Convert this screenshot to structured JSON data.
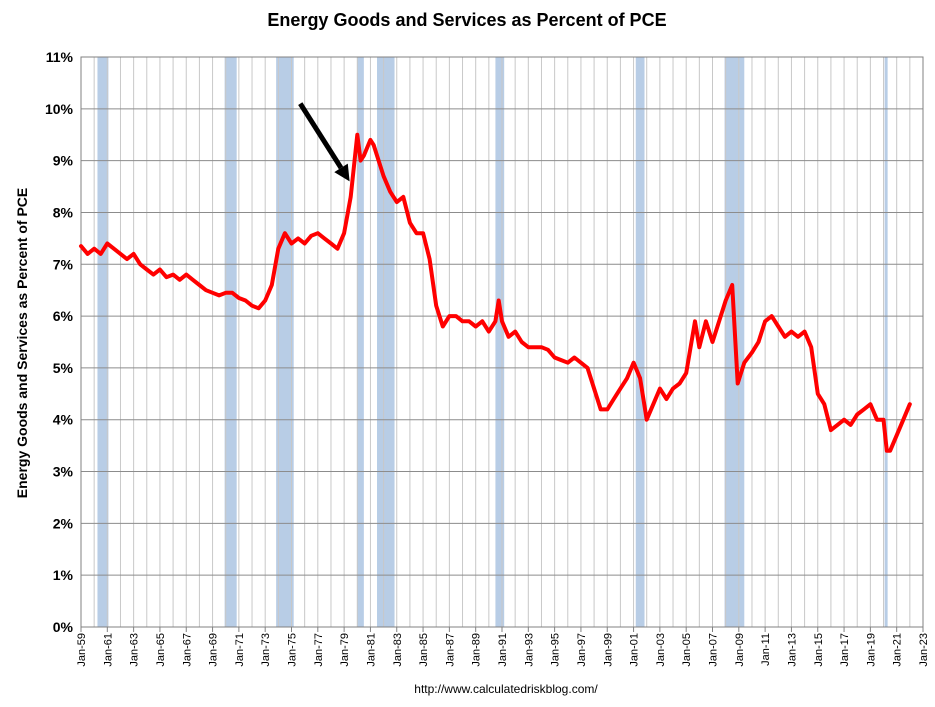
{
  "chart_data": {
    "type": "line",
    "title": "Energy Goods and Services as Percent of PCE",
    "ylabel": "Energy Goods and Services as Percent of PCE",
    "source": "http://www.calculatedriskblog.com/",
    "ylim": [
      0,
      11
    ],
    "y_unit": "%",
    "yticks": [
      "0%",
      "1%",
      "2%",
      "3%",
      "4%",
      "5%",
      "6%",
      "7%",
      "8%",
      "9%",
      "10%",
      "11%"
    ],
    "xlim": [
      "1959-01",
      "2023-01"
    ],
    "xticks": [
      "Jan-59",
      "Jan-61",
      "Jan-63",
      "Jan-65",
      "Jan-67",
      "Jan-69",
      "Jan-71",
      "Jan-73",
      "Jan-75",
      "Jan-77",
      "Jan-79",
      "Jan-81",
      "Jan-83",
      "Jan-85",
      "Jan-87",
      "Jan-89",
      "Jan-91",
      "Jan-93",
      "Jan-95",
      "Jan-97",
      "Jan-99",
      "Jan-01",
      "Jan-03",
      "Jan-05",
      "Jan-07",
      "Jan-09",
      "Jan-11",
      "Jan-13",
      "Jan-15",
      "Jan-17",
      "Jan-19",
      "Jan-21",
      "Jan-23"
    ],
    "grid": true,
    "line_color": "#ff0000",
    "recession_color": "#b8cde6",
    "recessions": [
      [
        "1960-04",
        "1961-02"
      ],
      [
        "1969-12",
        "1970-11"
      ],
      [
        "1973-11",
        "1975-03"
      ],
      [
        "1980-01",
        "1980-07"
      ],
      [
        "1981-07",
        "1982-11"
      ],
      [
        "1990-07",
        "1991-03"
      ],
      [
        "2001-03",
        "2001-11"
      ],
      [
        "2007-12",
        "2009-06"
      ],
      [
        "2020-02",
        "2020-04"
      ]
    ],
    "annotation": {
      "type": "arrow",
      "from": [
        "1975-09",
        10.1
      ],
      "to": [
        "1979-06",
        8.6
      ]
    },
    "series": [
      {
        "x": [
          "1959-01",
          "1959-07",
          "1960-01",
          "1960-07",
          "1961-01",
          "1961-07",
          "1962-01",
          "1962-07",
          "1963-01",
          "1963-07",
          "1964-01",
          "1964-07",
          "1965-01",
          "1965-07",
          "1966-01",
          "1966-07",
          "1967-01",
          "1967-07",
          "1968-01",
          "1968-07",
          "1969-01",
          "1969-07",
          "1970-01",
          "1970-07",
          "1971-01",
          "1971-07",
          "1972-01",
          "1972-07",
          "1973-01",
          "1973-07",
          "1974-01",
          "1974-07",
          "1975-01",
          "1975-07",
          "1976-01",
          "1976-07",
          "1977-01",
          "1977-07",
          "1978-01",
          "1978-07",
          "1979-01",
          "1979-07",
          "1980-01",
          "1980-04",
          "1980-07",
          "1981-01",
          "1981-04",
          "1981-07",
          "1982-01",
          "1982-07",
          "1983-01",
          "1983-07",
          "1984-01",
          "1984-07",
          "1985-01",
          "1985-07",
          "1986-01",
          "1986-07",
          "1987-01",
          "1987-07",
          "1988-01",
          "1988-07",
          "1989-01",
          "1989-07",
          "1990-01",
          "1990-07",
          "1990-10",
          "1991-01",
          "1991-07",
          "1992-01",
          "1992-07",
          "1993-01",
          "1993-07",
          "1994-01",
          "1994-07",
          "1995-01",
          "1995-07",
          "1996-01",
          "1996-07",
          "1997-01",
          "1997-07",
          "1998-01",
          "1998-07",
          "1999-01",
          "1999-07",
          "2000-01",
          "2000-07",
          "2001-01",
          "2001-07",
          "2002-01",
          "2002-07",
          "2003-01",
          "2003-07",
          "2004-01",
          "2004-07",
          "2005-01",
          "2005-09",
          "2006-01",
          "2006-07",
          "2007-01",
          "2007-07",
          "2008-01",
          "2008-07",
          "2008-12",
          "2009-06",
          "2010-01",
          "2010-07",
          "2011-01",
          "2011-07",
          "2012-01",
          "2012-07",
          "2013-01",
          "2013-07",
          "2014-01",
          "2014-07",
          "2015-01",
          "2015-07",
          "2016-01",
          "2016-07",
          "2017-01",
          "2017-07",
          "2018-01",
          "2018-07",
          "2019-01",
          "2019-07",
          "2020-01",
          "2020-04",
          "2020-07",
          "2021-01",
          "2021-07",
          "2022-01"
        ],
        "y": [
          7.35,
          7.2,
          7.3,
          7.2,
          7.4,
          7.3,
          7.2,
          7.1,
          7.2,
          7.0,
          6.9,
          6.8,
          6.9,
          6.75,
          6.8,
          6.7,
          6.8,
          6.7,
          6.6,
          6.5,
          6.45,
          6.4,
          6.45,
          6.45,
          6.35,
          6.3,
          6.2,
          6.15,
          6.3,
          6.6,
          7.3,
          7.6,
          7.4,
          7.5,
          7.4,
          7.55,
          7.6,
          7.5,
          7.4,
          7.3,
          7.6,
          8.3,
          9.5,
          9.0,
          9.1,
          9.4,
          9.3,
          9.1,
          8.7,
          8.4,
          8.2,
          8.3,
          7.8,
          7.6,
          7.6,
          7.1,
          6.2,
          5.8,
          6.0,
          6.0,
          5.9,
          5.9,
          5.8,
          5.9,
          5.7,
          5.9,
          6.3,
          5.9,
          5.6,
          5.7,
          5.5,
          5.4,
          5.4,
          5.4,
          5.35,
          5.2,
          5.15,
          5.1,
          5.2,
          5.1,
          5.0,
          4.6,
          4.2,
          4.2,
          4.4,
          4.6,
          4.8,
          5.1,
          4.8,
          4.0,
          4.3,
          4.6,
          4.4,
          4.6,
          4.7,
          4.9,
          5.9,
          5.4,
          5.9,
          5.5,
          5.9,
          6.3,
          6.6,
          4.7,
          5.1,
          5.3,
          5.5,
          5.9,
          6.0,
          5.8,
          5.6,
          5.7,
          5.6,
          5.7,
          5.4,
          4.5,
          4.3,
          3.8,
          3.9,
          4.0,
          3.9,
          4.1,
          4.2,
          4.3,
          4.0,
          4.0,
          3.4,
          3.4,
          3.7,
          4.0,
          4.3
        ]
      }
    ]
  }
}
